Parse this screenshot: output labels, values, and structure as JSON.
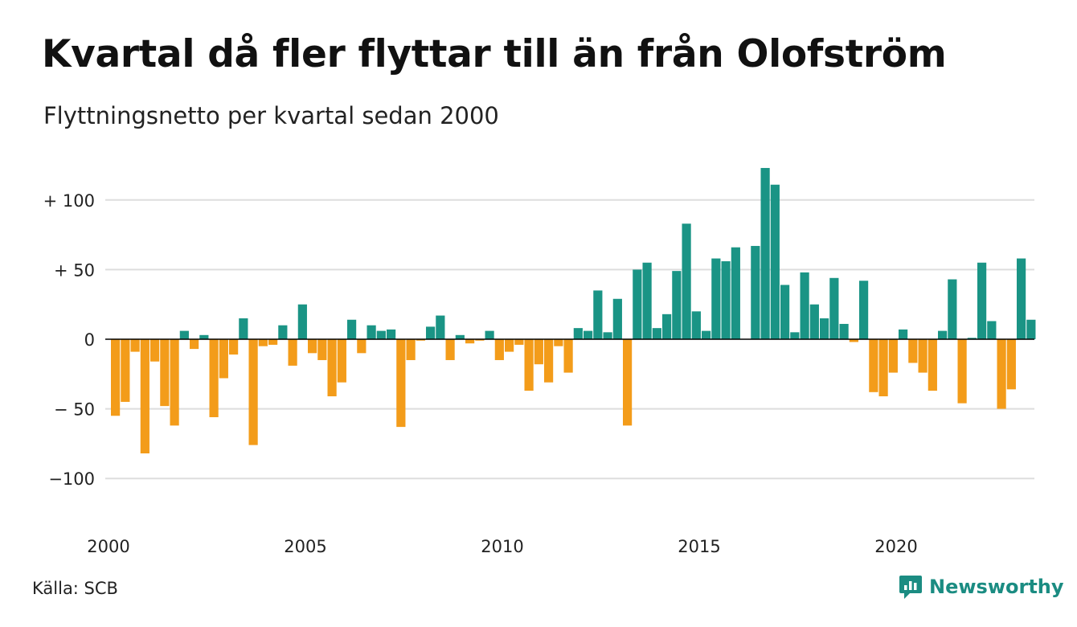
{
  "title": "Kvartal då fler flyttar till än från Olofström",
  "subtitle": "Flyttningsnetto per kvartal sedan 2000",
  "source": "Källa: SCB",
  "brand": "Newsworthy",
  "colors": {
    "positive": "#1a9485",
    "negative": "#f39c1a",
    "grid": "#dddddd",
    "brand": "#1b8c82"
  },
  "chart_data": {
    "type": "bar",
    "start": "2000 Q1",
    "y_ticks": [
      {
        "value": 100,
        "label": "+ 100"
      },
      {
        "value": 50,
        "label": "+  50"
      },
      {
        "value": 0,
        "label": "0"
      },
      {
        "value": -50,
        "label": "− 50"
      },
      {
        "value": -100,
        "label": "−100"
      }
    ],
    "x_ticks": [
      "2000",
      "2005",
      "2010",
      "2015",
      "2020"
    ],
    "ylim": [
      -130,
      130
    ],
    "grid": true,
    "values": [
      -55,
      -45,
      -9,
      -82,
      -16,
      -48,
      -62,
      6,
      -7,
      3,
      -56,
      -28,
      -11,
      15,
      -76,
      -5,
      -4,
      10,
      -19,
      25,
      -10,
      -15,
      -41,
      -31,
      14,
      -10,
      10,
      6,
      7,
      -63,
      -15,
      -1,
      9,
      17,
      -15,
      3,
      -3,
      -1,
      6,
      -15,
      -9,
      -4,
      -37,
      -18,
      -31,
      -5,
      -24,
      8,
      6,
      35,
      5,
      29,
      -62,
      50,
      55,
      8,
      18,
      49,
      83,
      20,
      6,
      58,
      56,
      66,
      0,
      67,
      123,
      111,
      39,
      5,
      48,
      25,
      15,
      44,
      11,
      -2,
      42,
      -38,
      -41,
      -24,
      7,
      -17,
      -24,
      -37,
      6,
      43,
      -46,
      1,
      55,
      13,
      -50,
      -36,
      58,
      14
    ]
  }
}
